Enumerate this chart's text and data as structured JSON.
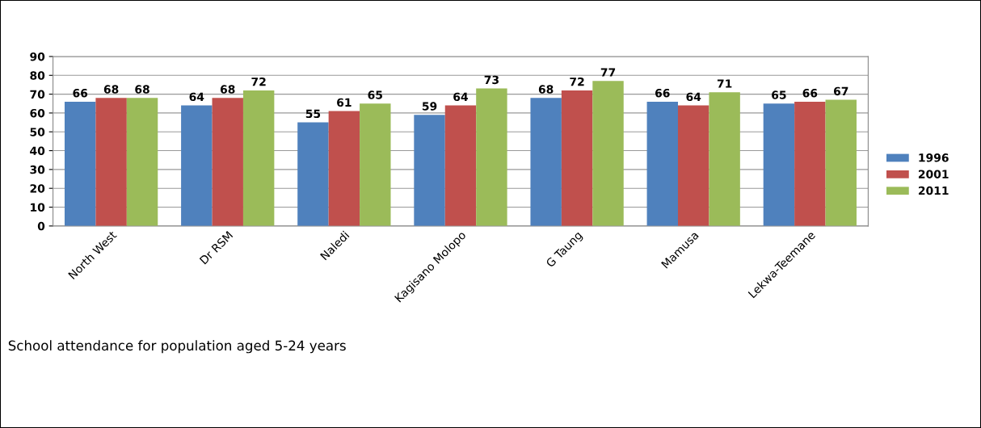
{
  "chart_data": {
    "type": "bar",
    "categories": [
      "North West",
      "Dr RSM",
      "Naledi",
      "Kagisano Molopo",
      "G Taung",
      "Mamusa",
      "Lekwa-Teemane"
    ],
    "series": [
      {
        "name": "1996",
        "color": "#4f81bd",
        "values": [
          66,
          64,
          55,
          59,
          68,
          66,
          65
        ]
      },
      {
        "name": "2001",
        "color": "#c0504d",
        "values": [
          68,
          68,
          61,
          64,
          72,
          64,
          66
        ]
      },
      {
        "name": "2011",
        "color": "#9bbb59",
        "values": [
          68,
          72,
          65,
          73,
          77,
          71,
          67
        ]
      }
    ],
    "ylim": [
      0,
      90
    ],
    "yticks": [
      0,
      10,
      20,
      30,
      40,
      50,
      60,
      70,
      80,
      90
    ],
    "grid": "y",
    "legend": "right",
    "data_labels": true,
    "annotations": [
      "School attendance for population aged 5-24 years"
    ]
  }
}
